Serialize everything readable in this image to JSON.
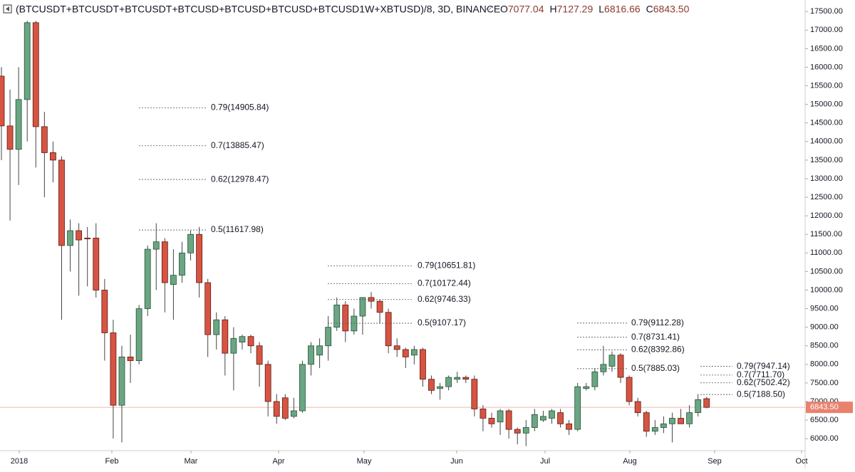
{
  "chart_data": {
    "type": "candlestick",
    "title": "(BTCUSDT+BTCUSDT+BTCUSDT+BTCUSD+BTCUSD+BTCUSD+BTCUSD1W+XBTUSD)/8, 3D, BINANCE",
    "ohlc_prefixes": [
      "O",
      "H",
      "L",
      "C"
    ],
    "ohlc_values": [
      7077.04,
      7127.29,
      6816.66,
      {
        "value": 6843.5,
        "label": "6843.50"
      }
    ],
    "last_price": {
      "value": 6843.5,
      "label": "6843.50"
    },
    "up_color": "#6ba583",
    "down_color": "#d75442",
    "open": [
      15760,
      14420,
      13790,
      15130,
      17200,
      14400,
      13700,
      13500,
      11200,
      11600,
      11400,
      11400,
      10000,
      8850,
      6900,
      8200,
      8100,
      9500,
      11100,
      11300,
      10150,
      10400,
      11000,
      11500,
      10200,
      8800,
      9200,
      8300,
      8600,
      8750,
      8500,
      8000,
      7000,
      7100,
      6600,
      6750,
      8000,
      8250,
      8500,
      9000,
      9600,
      8900,
      9300,
      9800,
      9700,
      9400,
      8500,
      8400,
      8250,
      8400,
      7600,
      7350,
      7400,
      7600,
      7650,
      7600,
      6800,
      6550,
      6450,
      6750,
      6250,
      6150,
      6300,
      6500,
      6550,
      6700,
      6400,
      6250,
      7350,
      7400,
      7800,
      7950,
      8250,
      7650,
      7000,
      6700,
      6200,
      6300,
      6400,
      6550,
      6400,
      6700,
      7077.04
    ],
    "high": [
      16000,
      15400,
      16000,
      17250,
      17250,
      14800,
      14000,
      13600,
      11900,
      11800,
      11700,
      11800,
      10300,
      9200,
      8500,
      8800,
      9600,
      11200,
      11800,
      11400,
      11100,
      11300,
      11600,
      11700,
      10300,
      9400,
      9300,
      9000,
      8800,
      8800,
      8600,
      8100,
      7200,
      7200,
      7100,
      8100,
      8600,
      8700,
      9300,
      9800,
      9700,
      9500,
      9800,
      9950,
      9750,
      9500,
      8700,
      8450,
      8500,
      8450,
      7700,
      7500,
      7700,
      7800,
      7700,
      7700,
      6900,
      6700,
      6800,
      6800,
      6300,
      6500,
      6800,
      6750,
      6800,
      6800,
      6500,
      7500,
      7500,
      7900,
      8500,
      8350,
      8300,
      7700,
      7100,
      6750,
      6500,
      6600,
      6700,
      6800,
      6900,
      7200,
      7127.29
    ],
    "low": [
      13500,
      11870,
      12830,
      14000,
      13300,
      12500,
      12900,
      9200,
      10500,
      9850,
      10100,
      9800,
      8100,
      6000,
      5900,
      7500,
      8000,
      9300,
      10000,
      9400,
      9200,
      10200,
      10800,
      9800,
      8200,
      8400,
      7700,
      7300,
      8400,
      8300,
      7400,
      6600,
      6400,
      6500,
      6550,
      6700,
      7700,
      7900,
      8100,
      8900,
      8600,
      8800,
      8800,
      9500,
      9100,
      8300,
      8200,
      7900,
      8000,
      7400,
      7200,
      7050,
      7300,
      7500,
      7500,
      6600,
      6200,
      6300,
      6100,
      6000,
      5850,
      5800,
      6200,
      6450,
      6400,
      6300,
      6100,
      6200,
      7300,
      7300,
      7700,
      7800,
      7500,
      6900,
      6600,
      6050,
      6100,
      6150,
      5900,
      6400,
      6300,
      6600,
      6816.66
    ],
    "close": [
      14420,
      13790,
      15130,
      17200,
      14400,
      13700,
      13500,
      11200,
      11600,
      11350,
      11380,
      10000,
      8850,
      6900,
      8200,
      8100,
      9500,
      11100,
      11300,
      10200,
      10400,
      11000,
      11500,
      10200,
      8800,
      9200,
      8300,
      8700,
      8750,
      8500,
      8000,
      7000,
      6600,
      6550,
      6750,
      8000,
      8500,
      8500,
      9000,
      9600,
      8900,
      9300,
      9800,
      9700,
      9400,
      8500,
      8400,
      8200,
      8400,
      7600,
      7300,
      7400,
      7650,
      7650,
      7600,
      6800,
      6550,
      6400,
      6750,
      6250,
      6150,
      6300,
      6650,
      6600,
      6750,
      6400,
      6250,
      7400,
      7400,
      7800,
      8000,
      8250,
      7650,
      7000,
      6700,
      6200,
      6300,
      6400,
      6550,
      6400,
      6700,
      7050,
      6843.5
    ],
    "x_labels": [
      "2018",
      "Feb",
      "Mar",
      "Apr",
      "May",
      "Jun",
      "Jul",
      "Aug",
      "Sep",
      "Oct"
    ],
    "ylim": [
      5620,
      17810
    ],
    "yticks": [
      {
        "value": 6000,
        "label": "6000.00"
      },
      {
        "value": 6500,
        "label": "6500.00"
      },
      {
        "value": 7000,
        "label": "7000.00"
      },
      {
        "value": 7500,
        "label": "7500.00"
      },
      {
        "value": 8000,
        "label": "8000.00"
      },
      {
        "value": 8500,
        "label": "8500.00"
      },
      {
        "value": 9000,
        "label": "9000.00"
      },
      {
        "value": 9500,
        "label": "9500.00"
      },
      {
        "value": 10000,
        "label": "10000.00"
      },
      {
        "value": 10500,
        "label": "10500.00"
      },
      {
        "value": 11000,
        "label": "11000.00"
      },
      {
        "value": 11500,
        "label": "11500.00"
      },
      {
        "value": 12000,
        "label": "12000.00"
      },
      {
        "value": 12500,
        "label": "12500.00"
      },
      {
        "value": 13000,
        "label": "13000.00"
      },
      {
        "value": 13500,
        "label": "13500.00"
      },
      {
        "value": 14000,
        "label": "14000.00"
      },
      {
        "value": 14500,
        "label": "14500.00"
      },
      {
        "value": 15000,
        "label": "15000.00"
      },
      {
        "value": 15500,
        "label": "15500.00"
      },
      {
        "value": 16000,
        "label": "16000.00"
      },
      {
        "value": 16500,
        "label": "16500.00"
      },
      {
        "value": 17000,
        "label": "17000.00"
      },
      {
        "value": 17500,
        "label": "17500.00"
      }
    ],
    "fib_groups": [
      {
        "levels": [
          {
            "label": "0.79(14905.84)",
            "value": 14905.84
          },
          {
            "label": "0.7(13885.47)",
            "value": 13885.47
          },
          {
            "label": "0.62(12978.47)",
            "value": 12978.47
          },
          {
            "label": "0.5(11617.98)",
            "value": 11617.98
          }
        ]
      },
      {
        "levels": [
          {
            "label": "0.79(10651.81)",
            "value": 10651.81
          },
          {
            "label": "0.7(10172.44)",
            "value": 10172.44
          },
          {
            "label": "0.62(9746.33)",
            "value": 9746.33
          },
          {
            "label": "0.5(9107.17)",
            "value": 9107.17
          }
        ]
      },
      {
        "levels": [
          {
            "label": "0.79(9112.28)",
            "value": 9112.28
          },
          {
            "label": "0.7(8731.41)",
            "value": 8731.41
          },
          {
            "label": "0.62(8392.86)",
            "value": 8392.86
          },
          {
            "label": "0.5(7885.03)",
            "value": 7885.03
          }
        ]
      },
      {
        "levels": [
          {
            "label": "0.79(7947.14)",
            "value": 7947.14
          },
          {
            "label": "0.7(7711.70)",
            "value": 7711.7
          },
          {
            "label": "0.62(7502.42)",
            "value": 7502.42
          },
          {
            "label": "0.5(7188.50)",
            "value": 7188.5
          }
        ]
      }
    ]
  }
}
